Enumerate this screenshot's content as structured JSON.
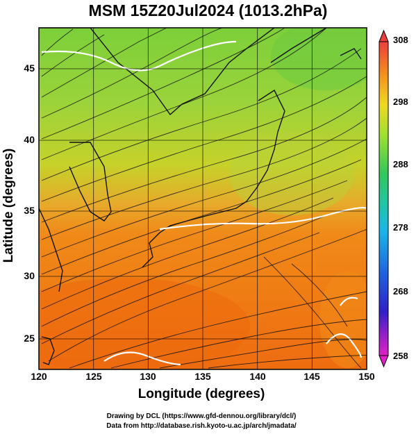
{
  "title": "MSM 15Z20Jul2024 (1013.2hPa)",
  "axes": {
    "xlabel": "Longitude (degrees)",
    "ylabel": "Latitude  (degrees)",
    "xticks": [
      "120",
      "125",
      "130",
      "135",
      "140",
      "145",
      "150"
    ],
    "yticks": [
      "45",
      "40",
      "35",
      "30",
      "25"
    ]
  },
  "colorbar": {
    "ticks": [
      "308",
      "298",
      "288",
      "278",
      "268",
      "258"
    ],
    "min": 258,
    "max": 308
  },
  "credits": {
    "line1": "Drawing by DCL (https://www.gfd-dennou.org/library/dcl/)",
    "line2": "Data from http://database.rish.kyoto-u.ac.jp/arch/jmadata/"
  },
  "map_data": {
    "lon_range": [
      120,
      150
    ],
    "lat_range": [
      22.5,
      47.5
    ],
    "field": "temperature (K) with streamlines",
    "colors": {
      "north": "#8fd13c",
      "mid": "#d8c020",
      "south": "#f07a10",
      "deep_south": "#ee6a0a"
    }
  }
}
